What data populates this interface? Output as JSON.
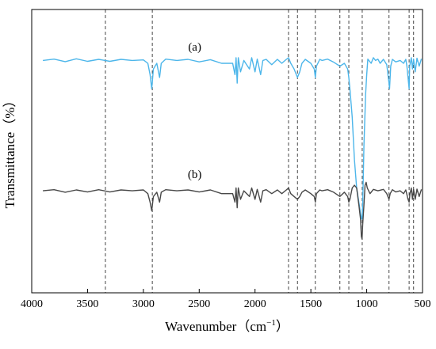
{
  "chart_data": {
    "type": "line",
    "xlabel": "Wavenumber（cm",
    "xlabel_sup": "−1",
    "xlabel_close": "）",
    "ylabel": "Transmittance（%）",
    "xlim": [
      4000,
      500
    ],
    "x_reversed": true,
    "x_ticks": [
      4000,
      3500,
      3000,
      2500,
      2000,
      1500,
      1000,
      500
    ],
    "y_axis_ticks_shown": false,
    "grid": false,
    "reference_lines": [
      3340,
      2920,
      1700,
      1620,
      1460,
      1240,
      1160,
      1040,
      800,
      620,
      580
    ],
    "series": [
      {
        "name": "(a)",
        "color": "#4db6ea",
        "offset": 0.82,
        "points": [
          [
            3900,
            0
          ],
          [
            3800,
            0.005
          ],
          [
            3700,
            -0.004
          ],
          [
            3600,
            0.006
          ],
          [
            3500,
            -0.003
          ],
          [
            3400,
            0.004
          ],
          [
            3300,
            -0.003
          ],
          [
            3200,
            0.004
          ],
          [
            3100,
            0
          ],
          [
            3000,
            0.002
          ],
          [
            2960,
            -0.01
          ],
          [
            2940,
            -0.05
          ],
          [
            2925,
            -0.1
          ],
          [
            2910,
            -0.03
          ],
          [
            2880,
            -0.01
          ],
          [
            2855,
            -0.06
          ],
          [
            2840,
            -0.01
          ],
          [
            2800,
            0.005
          ],
          [
            2700,
            0
          ],
          [
            2600,
            0.004
          ],
          [
            2500,
            -0.005
          ],
          [
            2400,
            0.003
          ],
          [
            2300,
            -0.01
          ],
          [
            2200,
            -0.01
          ],
          [
            2180,
            -0.05
          ],
          [
            2170,
            0.01
          ],
          [
            2160,
            -0.08
          ],
          [
            2150,
            0.01
          ],
          [
            2130,
            -0.04
          ],
          [
            2100,
            0
          ],
          [
            2050,
            -0.03
          ],
          [
            2030,
            0.01
          ],
          [
            2000,
            -0.04
          ],
          [
            1980,
            0.005
          ],
          [
            1950,
            -0.05
          ],
          [
            1930,
            0
          ],
          [
            1900,
            0.004
          ],
          [
            1850,
            -0.015
          ],
          [
            1800,
            0.004
          ],
          [
            1760,
            -0.01
          ],
          [
            1720,
            0.004
          ],
          [
            1700,
            0.01
          ],
          [
            1680,
            -0.01
          ],
          [
            1650,
            -0.03
          ],
          [
            1620,
            -0.06
          ],
          [
            1600,
            -0.04
          ],
          [
            1580,
            -0.01
          ],
          [
            1550,
            0.004
          ],
          [
            1500,
            -0.01
          ],
          [
            1470,
            -0.03
          ],
          [
            1460,
            -0.06
          ],
          [
            1450,
            -0.02
          ],
          [
            1420,
            0.004
          ],
          [
            1400,
            0
          ],
          [
            1350,
            0.005
          ],
          [
            1300,
            -0.005
          ],
          [
            1240,
            -0.02
          ],
          [
            1200,
            -0.01
          ],
          [
            1170,
            -0.03
          ],
          [
            1160,
            -0.06
          ],
          [
            1150,
            -0.1
          ],
          [
            1130,
            -0.2
          ],
          [
            1110,
            -0.35
          ],
          [
            1090,
            -0.45
          ],
          [
            1070,
            -0.5
          ],
          [
            1055,
            -0.54
          ],
          [
            1045,
            -0.56
          ],
          [
            1040,
            -0.56
          ],
          [
            1035,
            -0.5
          ],
          [
            1025,
            -0.3
          ],
          [
            1010,
            -0.12
          ],
          [
            1000,
            -0.05
          ],
          [
            990,
            0.005
          ],
          [
            960,
            -0.01
          ],
          [
            940,
            0.01
          ],
          [
            920,
            0
          ],
          [
            900,
            0.005
          ],
          [
            880,
            -0.01
          ],
          [
            850,
            0.004
          ],
          [
            820,
            -0.015
          ],
          [
            800,
            -0.08
          ],
          [
            795,
            -0.1
          ],
          [
            785,
            -0.02
          ],
          [
            770,
            0.004
          ],
          [
            740,
            -0.005
          ],
          [
            700,
            0
          ],
          [
            670,
            -0.01
          ],
          [
            650,
            0.004
          ],
          [
            640,
            -0.02
          ],
          [
            630,
            -0.06
          ],
          [
            620,
            -0.1
          ],
          [
            615,
            -0.02
          ],
          [
            600,
            0.01
          ],
          [
            590,
            -0.03
          ],
          [
            580,
            0.005
          ],
          [
            565,
            -0.04
          ],
          [
            550,
            0.008
          ],
          [
            530,
            -0.02
          ],
          [
            510,
            0.006
          ]
        ]
      },
      {
        "name": "(b)",
        "color": "#484848",
        "offset": 0.36,
        "points": [
          [
            3900,
            0
          ],
          [
            3800,
            0.004
          ],
          [
            3700,
            -0.005
          ],
          [
            3600,
            0.003
          ],
          [
            3500,
            -0.004
          ],
          [
            3400,
            0.004
          ],
          [
            3300,
            -0.004
          ],
          [
            3200,
            0.003
          ],
          [
            3100,
            0
          ],
          [
            3000,
            0.003
          ],
          [
            2960,
            -0.01
          ],
          [
            2940,
            -0.04
          ],
          [
            2925,
            -0.07
          ],
          [
            2910,
            -0.02
          ],
          [
            2880,
            -0.005
          ],
          [
            2855,
            -0.04
          ],
          [
            2840,
            -0.005
          ],
          [
            2800,
            0.004
          ],
          [
            2700,
            0
          ],
          [
            2600,
            0.003
          ],
          [
            2500,
            -0.004
          ],
          [
            2400,
            0.003
          ],
          [
            2300,
            -0.01
          ],
          [
            2200,
            -0.01
          ],
          [
            2180,
            -0.04
          ],
          [
            2170,
            0.01
          ],
          [
            2160,
            -0.06
          ],
          [
            2150,
            0.01
          ],
          [
            2130,
            -0.03
          ],
          [
            2100,
            0
          ],
          [
            2050,
            -0.02
          ],
          [
            2030,
            0.01
          ],
          [
            2000,
            -0.03
          ],
          [
            1980,
            0.005
          ],
          [
            1950,
            -0.04
          ],
          [
            1930,
            0
          ],
          [
            1900,
            0.004
          ],
          [
            1850,
            -0.01
          ],
          [
            1800,
            0.003
          ],
          [
            1760,
            -0.01
          ],
          [
            1720,
            0.003
          ],
          [
            1700,
            0.01
          ],
          [
            1680,
            -0.01
          ],
          [
            1650,
            -0.02
          ],
          [
            1620,
            -0.03
          ],
          [
            1600,
            -0.02
          ],
          [
            1580,
            -0.005
          ],
          [
            1550,
            0.003
          ],
          [
            1500,
            -0.01
          ],
          [
            1470,
            -0.02
          ],
          [
            1460,
            -0.04
          ],
          [
            1450,
            -0.01
          ],
          [
            1420,
            0.003
          ],
          [
            1400,
            0
          ],
          [
            1350,
            0.004
          ],
          [
            1300,
            -0.004
          ],
          [
            1240,
            -0.02
          ],
          [
            1200,
            -0.005
          ],
          [
            1170,
            -0.02
          ],
          [
            1160,
            -0.04
          ],
          [
            1150,
            -0.03
          ],
          [
            1130,
            0.01
          ],
          [
            1110,
            0.02
          ],
          [
            1090,
            0.01
          ],
          [
            1080,
            -0.02
          ],
          [
            1070,
            -0.05
          ],
          [
            1055,
            -0.1
          ],
          [
            1048,
            -0.16
          ],
          [
            1042,
            -0.17
          ],
          [
            1036,
            -0.12
          ],
          [
            1025,
            -0.05
          ],
          [
            1015,
            0.02
          ],
          [
            1005,
            0.03
          ],
          [
            995,
            0.01
          ],
          [
            970,
            -0.01
          ],
          [
            940,
            0.005
          ],
          [
            900,
            0
          ],
          [
            850,
            0.005
          ],
          [
            820,
            -0.01
          ],
          [
            800,
            -0.03
          ],
          [
            790,
            -0.01
          ],
          [
            770,
            0.004
          ],
          [
            740,
            -0.004
          ],
          [
            700,
            0
          ],
          [
            670,
            -0.01
          ],
          [
            650,
            0.003
          ],
          [
            630,
            -0.03
          ],
          [
            620,
            -0.04
          ],
          [
            612,
            -0.01
          ],
          [
            600,
            0.01
          ],
          [
            590,
            -0.03
          ],
          [
            580,
            0.005
          ],
          [
            565,
            -0.03
          ],
          [
            550,
            0.006
          ],
          [
            530,
            -0.02
          ],
          [
            510,
            0.005
          ]
        ]
      }
    ],
    "annotations": [
      {
        "text": "(a)",
        "x": 2540,
        "y": 0.855
      },
      {
        "text": "(b)",
        "x": 2540,
        "y": 0.405
      }
    ]
  }
}
